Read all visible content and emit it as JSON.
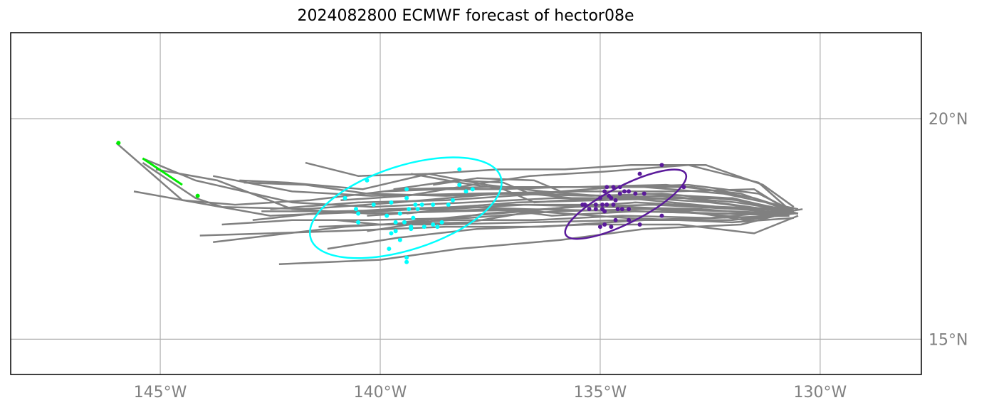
{
  "chart_data": {
    "type": "scatter",
    "title": "2024082800 ECMWF forecast of hector08e",
    "xlabel": "",
    "ylabel": "",
    "xlim": [
      -148.4,
      -127.7
    ],
    "ylim": [
      14.2,
      21.95
    ],
    "grid": true,
    "x_ticks": [
      -145,
      -140,
      -135,
      -130
    ],
    "x_tick_labels": [
      "145°W",
      "140°W",
      "135°W",
      "130°W"
    ],
    "y_ticks": [
      20,
      15
    ],
    "y_tick_labels": [
      "20°N",
      "15°N"
    ],
    "colors": {
      "tracks": "#808080",
      "cyan_group": "#00ffff",
      "purple_group": "#5a1a9a",
      "green_group": "#00ee00",
      "grid": "#b0b0b0"
    },
    "tracks": [
      [
        [
          -130.4,
          17.95
        ],
        [
          -131.6,
          17.75
        ],
        [
          -133.3,
          17.9
        ],
        [
          -135.0,
          18.05
        ],
        [
          -137.5,
          18.05
        ],
        [
          -140.0,
          17.9
        ],
        [
          -142.5,
          17.8
        ],
        [
          -145.6,
          18.35
        ]
      ],
      [
        [
          -130.7,
          17.85
        ],
        [
          -132.0,
          17.7
        ],
        [
          -134.0,
          17.7
        ],
        [
          -136.3,
          17.55
        ],
        [
          -138.5,
          17.55
        ],
        [
          -141.0,
          17.45
        ],
        [
          -144.1,
          17.35
        ]
      ],
      [
        [
          -130.6,
          17.9
        ],
        [
          -131.8,
          17.6
        ],
        [
          -134.0,
          17.5
        ],
        [
          -135.9,
          17.25
        ],
        [
          -138.2,
          17.05
        ],
        [
          -140.0,
          16.8
        ],
        [
          -142.3,
          16.7
        ]
      ],
      [
        [
          -130.6,
          18.0
        ],
        [
          -131.3,
          18.5
        ],
        [
          -132.6,
          18.95
        ],
        [
          -134.3,
          18.95
        ],
        [
          -135.8,
          18.85
        ],
        [
          -137.3,
          18.85
        ],
        [
          -138.9,
          18.75
        ],
        [
          -140.5,
          18.7
        ],
        [
          -141.7,
          19.0
        ]
      ],
      [
        [
          -130.8,
          17.95
        ],
        [
          -131.8,
          18.3
        ],
        [
          -133.5,
          18.5
        ],
        [
          -135.5,
          18.45
        ],
        [
          -137.6,
          18.45
        ],
        [
          -139.5,
          18.4
        ],
        [
          -141.6,
          18.15
        ],
        [
          -143.3,
          18.05
        ],
        [
          -144.5,
          18.15
        ],
        [
          -146.0,
          19.45
        ]
      ],
      [
        [
          -130.5,
          17.85
        ],
        [
          -131.9,
          18.15
        ],
        [
          -133.6,
          18.3
        ],
        [
          -135.2,
          18.25
        ],
        [
          -137.3,
          18.3
        ],
        [
          -139.6,
          18.1
        ],
        [
          -141.7,
          17.95
        ],
        [
          -143.6,
          18.0
        ],
        [
          -144.2,
          18.2
        ],
        [
          -145.4,
          19.0
        ]
      ],
      [
        [
          -130.7,
          17.9
        ],
        [
          -131.5,
          18.4
        ],
        [
          -133.3,
          18.35
        ],
        [
          -135.5,
          18.35
        ],
        [
          -137.9,
          18.3
        ],
        [
          -140.2,
          18.25
        ],
        [
          -142.0,
          18.35
        ],
        [
          -143.8,
          18.7
        ]
      ],
      [
        [
          -130.6,
          17.95
        ],
        [
          -132.2,
          18.0
        ],
        [
          -134.2,
          18.1
        ],
        [
          -136.2,
          17.95
        ],
        [
          -138.3,
          17.9
        ],
        [
          -140.3,
          17.85
        ],
        [
          -142.0,
          17.95
        ],
        [
          -143.7,
          18.6
        ],
        [
          -145.1,
          18.85
        ]
      ],
      [
        [
          -130.7,
          17.9
        ],
        [
          -132.0,
          18.2
        ],
        [
          -134.3,
          18.2
        ],
        [
          -136.0,
          18.2
        ],
        [
          -138.0,
          18.1
        ],
        [
          -140.2,
          18.0
        ],
        [
          -142.0,
          18.1
        ],
        [
          -144.2,
          18.6
        ],
        [
          -145.4,
          19.1
        ]
      ],
      [
        [
          -130.7,
          17.85
        ],
        [
          -132.0,
          17.9
        ],
        [
          -134.0,
          17.95
        ],
        [
          -136.0,
          17.9
        ],
        [
          -138.0,
          17.75
        ],
        [
          -140.3,
          17.7
        ],
        [
          -142.0,
          17.7
        ],
        [
          -143.6,
          17.6
        ]
      ],
      [
        [
          -130.8,
          17.9
        ],
        [
          -132.5,
          17.75
        ],
        [
          -134.5,
          17.8
        ],
        [
          -136.5,
          17.7
        ],
        [
          -138.4,
          17.7
        ],
        [
          -140.8,
          17.55
        ],
        [
          -142.1,
          17.4
        ],
        [
          -143.8,
          17.2
        ]
      ],
      [
        [
          -130.5,
          17.8
        ],
        [
          -131.5,
          17.4
        ],
        [
          -133.2,
          17.6
        ],
        [
          -135.3,
          17.6
        ],
        [
          -137.8,
          17.5
        ],
        [
          -139.6,
          17.3
        ],
        [
          -141.2,
          17.05
        ]
      ],
      [
        [
          -130.6,
          17.75
        ],
        [
          -132.0,
          17.65
        ],
        [
          -134.4,
          17.75
        ],
        [
          -136.5,
          17.9
        ],
        [
          -138.0,
          17.65
        ],
        [
          -140.0,
          17.6
        ],
        [
          -141.4,
          17.55
        ]
      ],
      [
        [
          -130.6,
          17.9
        ],
        [
          -132.3,
          18.0
        ],
        [
          -134.4,
          18.2
        ],
        [
          -136.3,
          18.35
        ],
        [
          -137.6,
          18.5
        ],
        [
          -138.9,
          18.75
        ],
        [
          -140.4,
          18.4
        ],
        [
          -142.1,
          18.55
        ],
        [
          -143.2,
          18.6
        ]
      ],
      [
        [
          -130.7,
          17.95
        ],
        [
          -131.5,
          18.2
        ],
        [
          -132.9,
          18.45
        ],
        [
          -134.7,
          18.45
        ],
        [
          -136.3,
          18.3
        ],
        [
          -138.5,
          18.15
        ],
        [
          -140.5,
          18.1
        ],
        [
          -142.5,
          17.95
        ]
      ],
      [
        [
          -130.7,
          17.8
        ],
        [
          -132.2,
          17.85
        ],
        [
          -134.2,
          17.9
        ],
        [
          -136.7,
          17.95
        ],
        [
          -138.2,
          18.0
        ],
        [
          -139.8,
          17.95
        ],
        [
          -141.5,
          17.85
        ],
        [
          -142.9,
          17.7
        ]
      ],
      [
        [
          -130.6,
          17.85
        ],
        [
          -131.9,
          17.95
        ],
        [
          -133.8,
          18.05
        ],
        [
          -135.6,
          18.0
        ],
        [
          -137.6,
          17.85
        ],
        [
          -139.0,
          17.65
        ],
        [
          -140.3,
          17.45
        ]
      ],
      [
        [
          -130.8,
          17.9
        ],
        [
          -132.5,
          18.1
        ],
        [
          -134.7,
          18.25
        ],
        [
          -136.8,
          18.3
        ],
        [
          -138.5,
          18.25
        ],
        [
          -140.3,
          18.3
        ],
        [
          -141.7,
          18.5
        ],
        [
          -143.1,
          18.55
        ]
      ],
      [
        [
          -130.6,
          17.85
        ],
        [
          -131.6,
          18.0
        ],
        [
          -133.1,
          18.2
        ],
        [
          -135.0,
          18.15
        ],
        [
          -136.9,
          18.1
        ],
        [
          -138.8,
          17.95
        ],
        [
          -141.0,
          17.9
        ],
        [
          -142.7,
          17.9
        ]
      ],
      [
        [
          -130.6,
          17.85
        ],
        [
          -131.4,
          18.55
        ],
        [
          -133.0,
          18.95
        ],
        [
          -134.9,
          18.8
        ],
        [
          -136.6,
          18.7
        ],
        [
          -137.6,
          18.55
        ],
        [
          -139.4,
          18.25
        ],
        [
          -140.9,
          18.15
        ]
      ],
      [
        [
          -130.6,
          17.9
        ],
        [
          -132.1,
          18.2
        ],
        [
          -134.0,
          18.3
        ],
        [
          -135.2,
          18.15
        ],
        [
          -136.6,
          18.3
        ],
        [
          -137.2,
          18.55
        ],
        [
          -138.3,
          18.6
        ],
        [
          -139.7,
          18.4
        ]
      ],
      [
        [
          -130.5,
          17.85
        ],
        [
          -132.3,
          17.85
        ],
        [
          -134.2,
          17.9
        ],
        [
          -136.1,
          17.8
        ],
        [
          -137.3,
          17.95
        ],
        [
          -138.8,
          17.9
        ],
        [
          -140.3,
          17.8
        ]
      ],
      [
        [
          -130.6,
          17.9
        ],
        [
          -131.9,
          18.1
        ],
        [
          -133.6,
          18.25
        ],
        [
          -135.1,
          18.2
        ],
        [
          -136.5,
          18.1
        ],
        [
          -137.2,
          18.4
        ],
        [
          -138.2,
          18.55
        ],
        [
          -139.3,
          18.75
        ]
      ],
      [
        [
          -130.7,
          17.8
        ],
        [
          -132.4,
          17.75
        ],
        [
          -134.4,
          17.7
        ],
        [
          -136.6,
          17.65
        ],
        [
          -138.6,
          17.6
        ],
        [
          -140.0,
          17.6
        ],
        [
          -141.0,
          17.7
        ]
      ],
      [
        [
          -130.6,
          17.85
        ],
        [
          -131.7,
          17.7
        ],
        [
          -133.4,
          17.95
        ],
        [
          -135.2,
          18.05
        ],
        [
          -136.7,
          17.9
        ],
        [
          -138.0,
          17.8
        ],
        [
          -139.5,
          17.65
        ]
      ],
      [
        [
          -130.5,
          17.95
        ],
        [
          -132.2,
          18.3
        ],
        [
          -134.0,
          18.45
        ],
        [
          -135.8,
          18.45
        ],
        [
          -137.3,
          18.4
        ],
        [
          -138.6,
          18.4
        ],
        [
          -139.9,
          18.35
        ]
      ],
      [
        [
          -130.8,
          17.8
        ],
        [
          -132.7,
          17.95
        ],
        [
          -134.9,
          18.0
        ],
        [
          -136.7,
          18.05
        ],
        [
          -138.5,
          17.95
        ],
        [
          -139.4,
          17.85
        ]
      ],
      [
        [
          -130.6,
          17.9
        ],
        [
          -131.4,
          18.3
        ],
        [
          -133.0,
          18.5
        ],
        [
          -134.6,
          18.45
        ],
        [
          -135.9,
          18.35
        ],
        [
          -136.5,
          18.6
        ],
        [
          -137.8,
          18.65
        ],
        [
          -138.8,
          18.5
        ]
      ]
    ],
    "purple_points": [
      [
        -133.6,
        18.95
      ],
      [
        -134.1,
        18.75
      ],
      [
        -133.1,
        18.45
      ],
      [
        -134.55,
        18.45
      ],
      [
        -134.7,
        18.45
      ],
      [
        -134.2,
        18.3
      ],
      [
        -134.35,
        18.35
      ],
      [
        -134.45,
        18.35
      ],
      [
        -134.55,
        18.3
      ],
      [
        -134.8,
        18.25
      ],
      [
        -134.9,
        18.35
      ],
      [
        -135.0,
        18.2
      ],
      [
        -135.1,
        18.05
      ],
      [
        -134.95,
        18.05
      ],
      [
        -134.85,
        18.05
      ],
      [
        -134.65,
        18.15
      ],
      [
        -134.7,
        18.05
      ],
      [
        -134.6,
        17.95
      ],
      [
        -134.35,
        17.95
      ],
      [
        -134.5,
        17.95
      ],
      [
        -134.0,
        18.3
      ],
      [
        -135.35,
        18.05
      ],
      [
        -135.4,
        18.05
      ],
      [
        -135.25,
        17.95
      ],
      [
        -135.1,
        17.95
      ],
      [
        -134.9,
        17.9
      ],
      [
        -134.65,
        17.7
      ],
      [
        -134.9,
        17.6
      ],
      [
        -135.0,
        17.55
      ],
      [
        -134.75,
        17.55
      ],
      [
        -134.35,
        17.7
      ],
      [
        -134.1,
        17.6
      ],
      [
        -133.6,
        17.8
      ],
      [
        -134.75,
        18.2
      ],
      [
        -134.95,
        17.95
      ],
      [
        -134.85,
        18.45
      ]
    ],
    "cyan_points": [
      [
        -138.2,
        18.85
      ],
      [
        -140.3,
        18.6
      ],
      [
        -138.2,
        18.5
      ],
      [
        -137.9,
        18.4
      ],
      [
        -138.05,
        18.35
      ],
      [
        -139.4,
        18.4
      ],
      [
        -140.8,
        18.2
      ],
      [
        -139.4,
        18.2
      ],
      [
        -139.2,
        18.05
      ],
      [
        -139.05,
        18.05
      ],
      [
        -139.15,
        17.95
      ],
      [
        -138.8,
        18.05
      ],
      [
        -138.45,
        18.05
      ],
      [
        -138.35,
        18.15
      ],
      [
        -139.35,
        17.95
      ],
      [
        -139.55,
        17.85
      ],
      [
        -139.85,
        17.8
      ],
      [
        -139.75,
        18.1
      ],
      [
        -140.5,
        17.85
      ],
      [
        -140.5,
        17.65
      ],
      [
        -140.55,
        17.95
      ],
      [
        -140.15,
        18.05
      ],
      [
        -139.65,
        17.65
      ],
      [
        -139.45,
        17.65
      ],
      [
        -139.3,
        17.55
      ],
      [
        -139.3,
        17.5
      ],
      [
        -139.0,
        17.55
      ],
      [
        -138.8,
        17.6
      ],
      [
        -138.7,
        17.55
      ],
      [
        -138.6,
        17.65
      ],
      [
        -139.25,
        17.75
      ],
      [
        -139.55,
        17.25
      ],
      [
        -139.65,
        17.45
      ],
      [
        -139.75,
        17.4
      ],
      [
        -139.8,
        17.05
      ],
      [
        -139.4,
        16.85
      ],
      [
        -139.4,
        16.75
      ]
    ],
    "green_points": [
      [
        -145.95,
        19.45
      ],
      [
        -144.15,
        18.25
      ]
    ],
    "green_segment": [
      [
        -145.4,
        19.1
      ],
      [
        -144.5,
        18.5
      ]
    ],
    "cyan_ellipse": {
      "cx": -139.42,
      "cy": 17.98,
      "rx": 2.27,
      "ry": 0.95,
      "angle_deg": -18
    },
    "purple_ellipse": {
      "cx": -134.42,
      "cy": 18.06,
      "rx": 1.53,
      "ry": 0.42,
      "angle_deg": -27
    }
  }
}
